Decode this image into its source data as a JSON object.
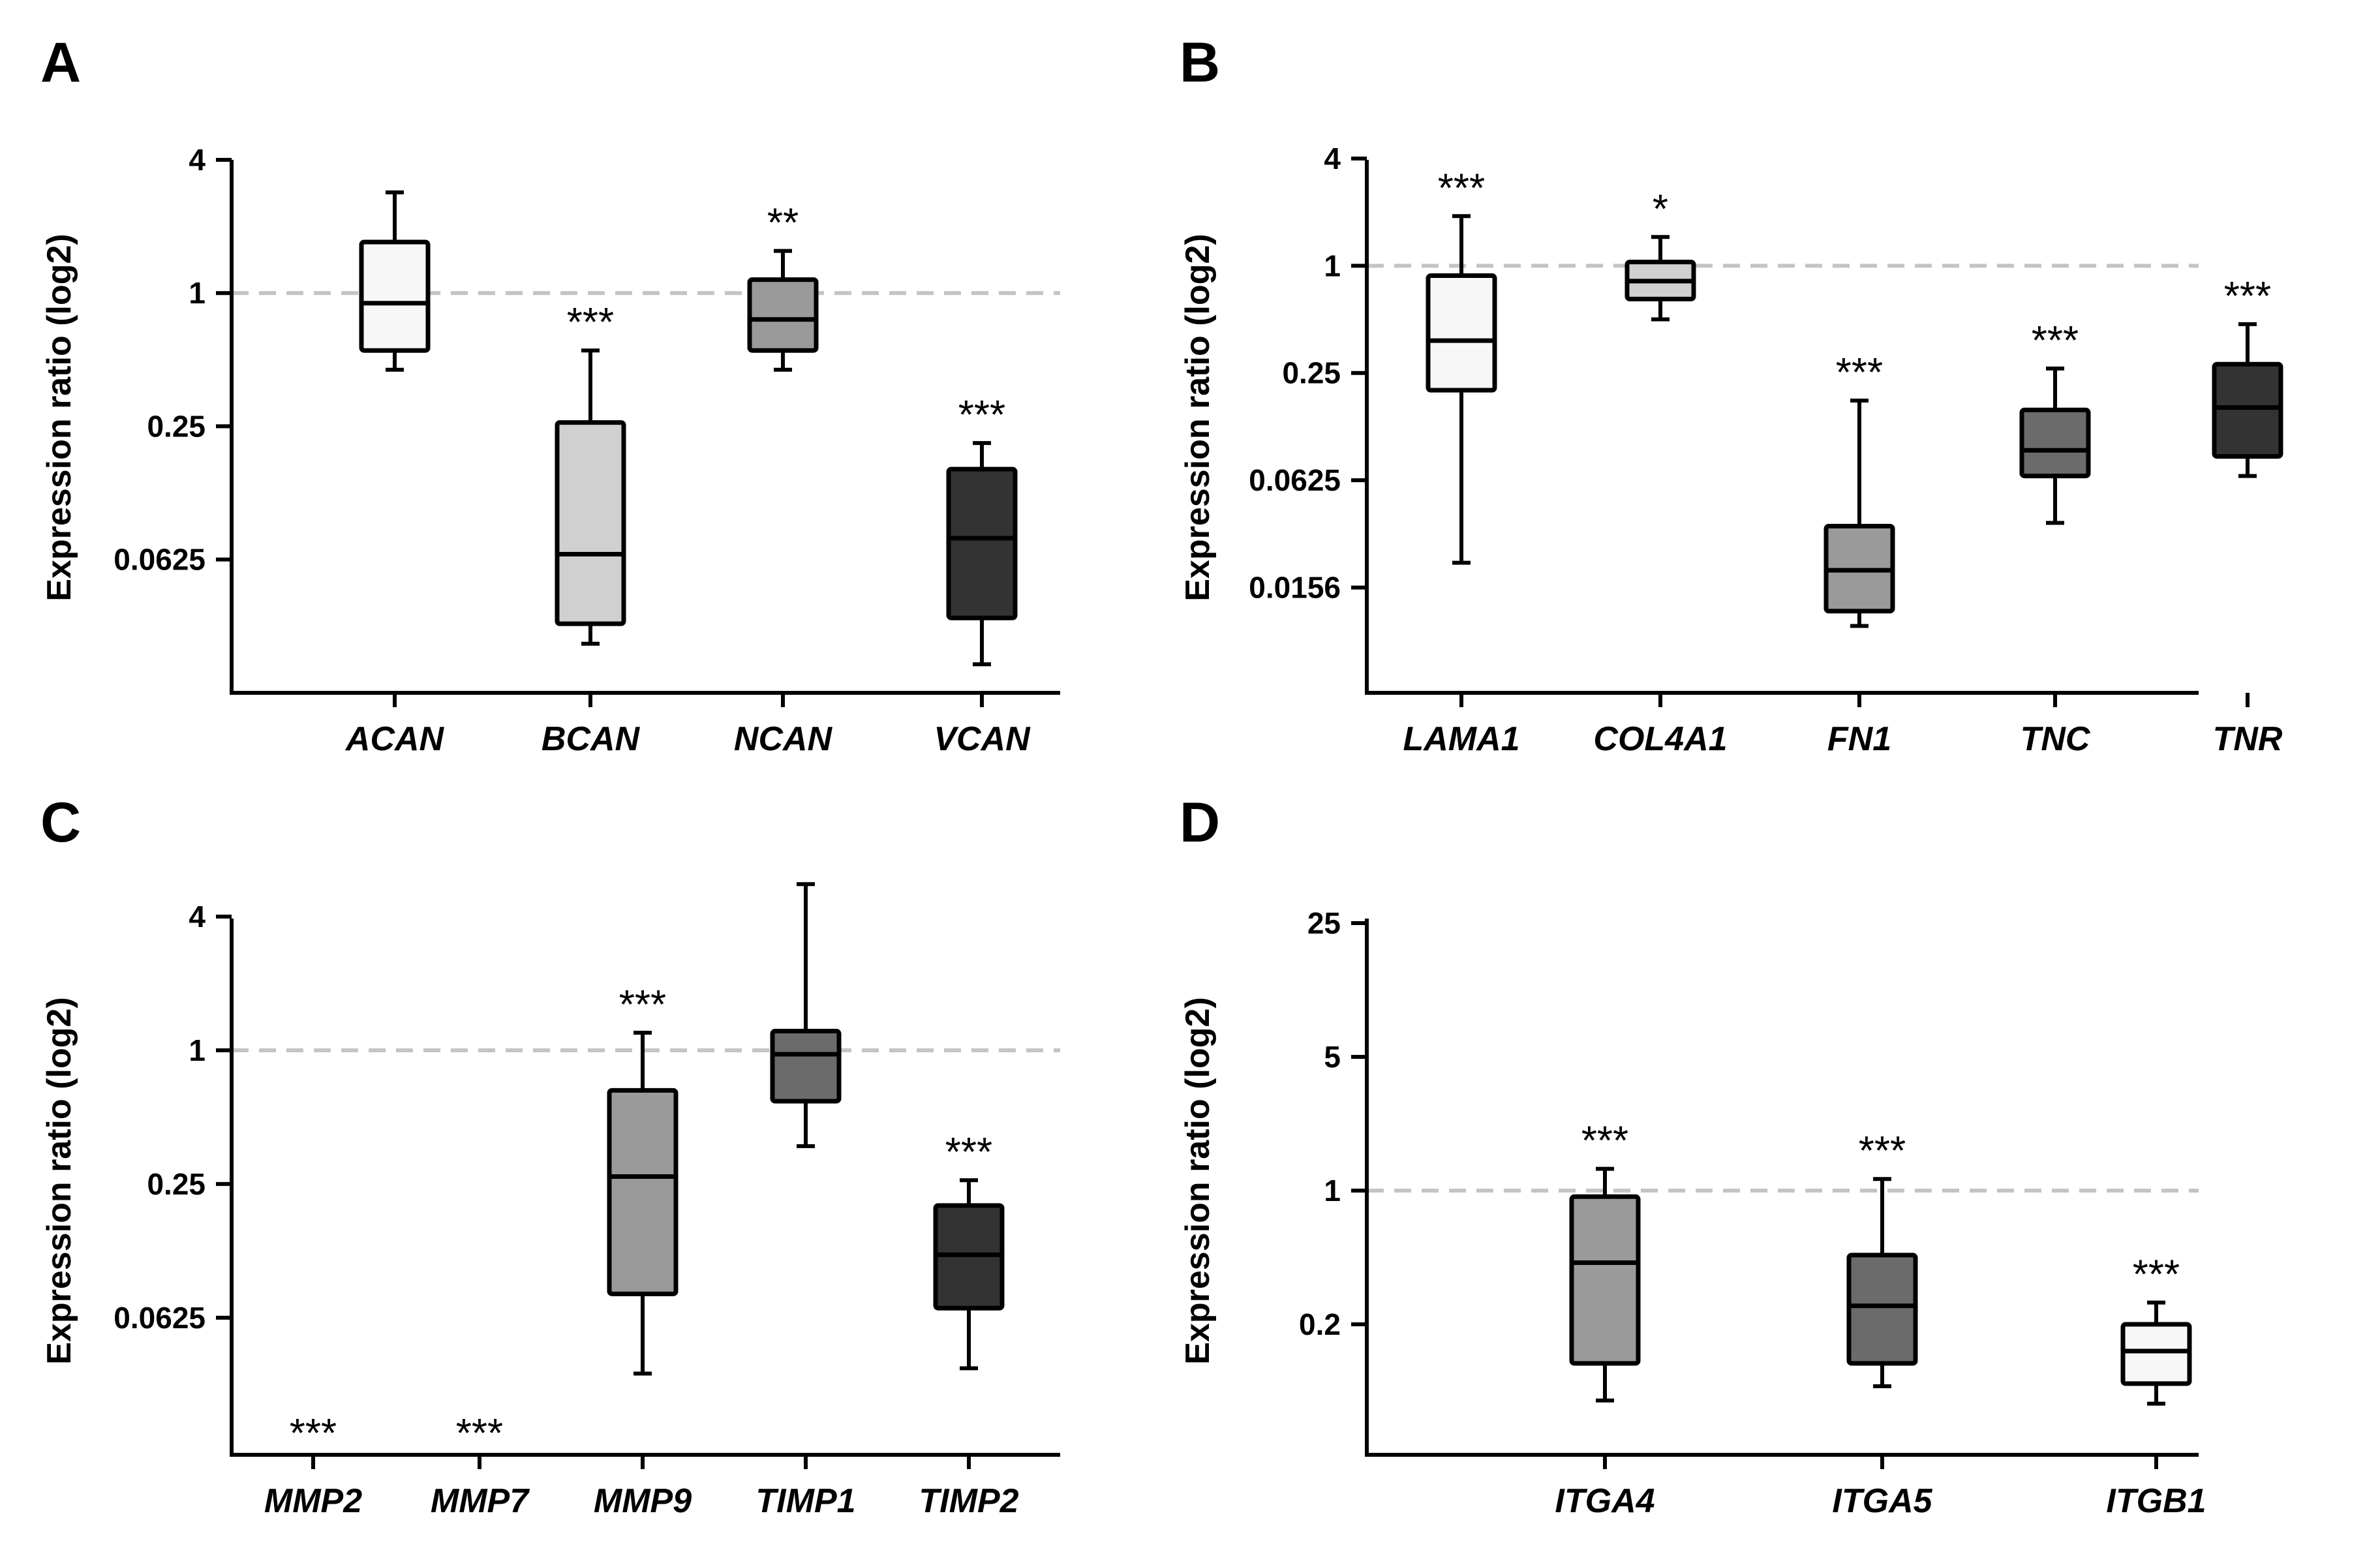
{
  "chart_data": [
    {
      "type": "box",
      "panel": "A",
      "ylabel": "Expression ratio (log2)",
      "yscale": "log2",
      "yticks": [
        4,
        1,
        0.25,
        0.0625
      ],
      "ytick_labels": [
        "4",
        "1",
        "0.25",
        "0.0625"
      ],
      "ylim": [
        0.0156,
        4
      ],
      "reference_line": 1,
      "categories": [
        "ACAN",
        "BCAN",
        "NCAN",
        "VCAN"
      ],
      "boxes": [
        {
          "name": "ACAN",
          "min": 0.45,
          "q1": 0.55,
          "median": 0.9,
          "q3": 1.7,
          "max": 2.85,
          "sig": "",
          "color": "#f7f7f7"
        },
        {
          "name": "BCAN",
          "min": 0.026,
          "q1": 0.032,
          "median": 0.066,
          "q3": 0.26,
          "max": 0.55,
          "sig": "***",
          "color": "#d0d0d0"
        },
        {
          "name": "NCAN",
          "min": 0.45,
          "q1": 0.55,
          "median": 0.76,
          "q3": 1.15,
          "max": 1.55,
          "sig": "**",
          "color": "#9a9a9a"
        },
        {
          "name": "VCAN",
          "min": 0.021,
          "q1": 0.034,
          "median": 0.078,
          "q3": 0.16,
          "max": 0.21,
          "sig": "***",
          "color": "#333333"
        }
      ]
    },
    {
      "type": "box",
      "panel": "B",
      "ylabel": "Expression ratio (log2)",
      "yscale": "log2",
      "yticks": [
        4,
        1,
        0.25,
        0.0625,
        0.0156
      ],
      "ytick_labels": [
        "4",
        "1",
        "0.25",
        "0.0625",
        "0.0156"
      ],
      "ylim": [
        0.0039,
        4
      ],
      "reference_line": 1,
      "categories": [
        "LAMA1",
        "COL4A1",
        "FN1",
        "TNC",
        "TNR"
      ],
      "boxes": [
        {
          "name": "LAMA1",
          "min": 0.0215,
          "q1": 0.2,
          "median": 0.38,
          "q3": 0.88,
          "max": 1.9,
          "sig": "***",
          "color": "#f7f7f7"
        },
        {
          "name": "COL4A1",
          "min": 0.5,
          "q1": 0.65,
          "median": 0.82,
          "q3": 1.05,
          "max": 1.45,
          "sig": "*",
          "color": "#d0d0d0"
        },
        {
          "name": "FN1",
          "min": 0.0095,
          "q1": 0.0115,
          "median": 0.0195,
          "q3": 0.0345,
          "max": 0.175,
          "sig": "***",
          "color": "#9a9a9a"
        },
        {
          "name": "TNC",
          "min": 0.036,
          "q1": 0.066,
          "median": 0.092,
          "q3": 0.155,
          "max": 0.265,
          "sig": "***",
          "color": "#6b6b6b"
        },
        {
          "name": "TNR",
          "min": 0.066,
          "q1": 0.085,
          "median": 0.16,
          "q3": 0.28,
          "max": 0.47,
          "sig": "***",
          "color": "#333333"
        }
      ]
    },
    {
      "type": "box",
      "panel": "C",
      "ylabel": "Expression ratio (log2)",
      "yscale": "log2",
      "yticks": [
        4,
        1,
        0.25,
        0.0625
      ],
      "ytick_labels": [
        "4",
        "1",
        "0.25",
        "0.0625"
      ],
      "ylim": [
        0.0156,
        4
      ],
      "reference_line": 1,
      "categories": [
        "MMP2",
        "MMP7",
        "MMP9",
        "TIMP1",
        "TIMP2"
      ],
      "boxes": [
        {
          "name": "MMP2",
          "sig": "***",
          "not_detected": true
        },
        {
          "name": "MMP7",
          "sig": "***",
          "not_detected": true
        },
        {
          "name": "MMP9",
          "min": 0.035,
          "q1": 0.08,
          "median": 0.27,
          "q3": 0.66,
          "max": 1.2,
          "sig": "***",
          "color": "#9a9a9a"
        },
        {
          "name": "TIMP1",
          "min": 0.37,
          "q1": 0.59,
          "median": 0.96,
          "q3": 1.22,
          "max": 5.6,
          "sig": "",
          "color": "#6b6b6b"
        },
        {
          "name": "TIMP2",
          "min": 0.037,
          "q1": 0.069,
          "median": 0.12,
          "q3": 0.2,
          "max": 0.26,
          "sig": "***",
          "color": "#333333"
        }
      ]
    },
    {
      "type": "box",
      "panel": "D",
      "ylabel": "Expression ratio (log2)",
      "yscale": "log",
      "yticks": [
        25,
        5,
        1,
        0.2
      ],
      "ytick_labels": [
        "25",
        "5",
        "1",
        "0.2"
      ],
      "ylim": [
        0.04,
        25
      ],
      "reference_line": 1,
      "categories": [
        "ITGA4",
        "ITGA5",
        "ITGB1"
      ],
      "boxes": [
        {
          "name": "ITGA4",
          "min": 0.08,
          "q1": 0.125,
          "median": 0.42,
          "q3": 0.93,
          "max": 1.3,
          "sig": "***",
          "color": "#9a9a9a"
        },
        {
          "name": "ITGA5",
          "min": 0.095,
          "q1": 0.125,
          "median": 0.25,
          "q3": 0.46,
          "max": 1.15,
          "sig": "***",
          "color": "#6b6b6b"
        },
        {
          "name": "ITGB1",
          "min": 0.077,
          "q1": 0.098,
          "median": 0.145,
          "q3": 0.2,
          "max": 0.26,
          "sig": "***",
          "color": "#f7f7f7"
        }
      ]
    }
  ]
}
